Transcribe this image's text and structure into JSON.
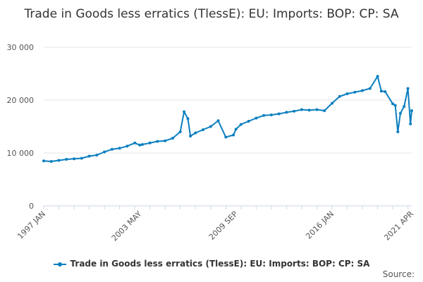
{
  "chart_data": {
    "type": "line",
    "title": "Trade in Goods less erratics (TlessE): EU: Imports: BOP: CP: SA",
    "xlabel": "",
    "ylabel": "",
    "ylim": [
      0,
      30000
    ],
    "yticks": [
      0,
      10000,
      20000,
      30000
    ],
    "ytick_labels": [
      "0",
      "10 000",
      "20 000",
      "30 000"
    ],
    "xticks": [
      "1997 JAN",
      "2003 MAY",
      "2009 SEP",
      "2016 JAN",
      "2021 APR"
    ],
    "grid": "horizontal",
    "legend": "bottom",
    "color": "#0b7fc0",
    "series": [
      {
        "name": "Trade in Goods less erratics (TlessE): EU: Imports: BOP: CP: SA",
        "x": [
          "1997 JAN",
          "1997 JUL",
          "1998 JAN",
          "1998 JUL",
          "1999 JAN",
          "1999 JUL",
          "2000 JAN",
          "2000 JUL",
          "2001 JAN",
          "2001 JUL",
          "2002 JAN",
          "2002 JUL",
          "2003 JAN",
          "2003 MAY",
          "2003 JUL",
          "2004 JAN",
          "2004 JUL",
          "2005 JAN",
          "2005 JUL",
          "2006 JAN",
          "2006 APR",
          "2006 JUL",
          "2006 SEP",
          "2007 JAN",
          "2007 JUL",
          "2008 JAN",
          "2008 JUL",
          "2009 JAN",
          "2009 JUL",
          "2009 SEP",
          "2010 JAN",
          "2010 JUL",
          "2011 JAN",
          "2011 JUL",
          "2012 JAN",
          "2012 JUL",
          "2013 JAN",
          "2013 JUL",
          "2014 JAN",
          "2014 JUL",
          "2015 JAN",
          "2015 JUL",
          "2016 JAN",
          "2016 JUL",
          "2017 JAN",
          "2017 JUL",
          "2018 JAN",
          "2018 JUL",
          "2019 JAN",
          "2019 APR",
          "2019 JUL",
          "2020 JAN",
          "2020 MAR",
          "2020 MAY",
          "2020 JUL",
          "2020 OCT",
          "2021 JAN",
          "2021 MAR",
          "2021 APR"
        ],
        "values": [
          8500,
          8400,
          8600,
          8800,
          8900,
          9000,
          9400,
          9600,
          10200,
          10700,
          10900,
          11300,
          11900,
          11500,
          11600,
          11900,
          12200,
          12300,
          12800,
          14000,
          17800,
          16500,
          13200,
          13800,
          14400,
          15000,
          16100,
          13000,
          13400,
          14500,
          15400,
          16000,
          16600,
          17100,
          17200,
          17400,
          17700,
          17900,
          18200,
          18100,
          18200,
          18000,
          19400,
          20700,
          21200,
          21500,
          21800,
          22200,
          24500,
          21700,
          21600,
          19300,
          19000,
          14000,
          17500,
          18800,
          22200,
          15500,
          18000
        ]
      }
    ]
  },
  "legend": {
    "label": "Trade in Goods less erratics (TlessE): EU: Imports: BOP: CP: SA"
  },
  "source": {
    "label": "Source:"
  }
}
